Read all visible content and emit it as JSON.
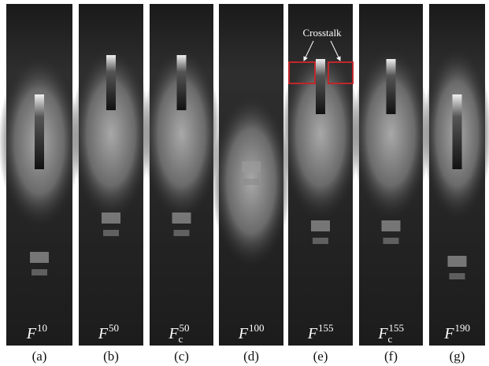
{
  "annotation": "Crosstalk",
  "panels": [
    {
      "symbol": "F",
      "superscript": "10",
      "caption": "(a)"
    },
    {
      "symbol": "F",
      "superscript": "50",
      "caption": "(b)"
    },
    {
      "symbol": "F",
      "subscript": "c",
      "superscript": "50",
      "caption": "(c)"
    },
    {
      "symbol": "F",
      "superscript": "100",
      "caption": "(d)"
    },
    {
      "symbol": "F",
      "superscript": "155",
      "caption": "(e)"
    },
    {
      "symbol": "F",
      "subscript": "c",
      "superscript": "155",
      "caption": "(f)"
    },
    {
      "symbol": "F",
      "superscript": "190",
      "caption": "(g)"
    }
  ]
}
